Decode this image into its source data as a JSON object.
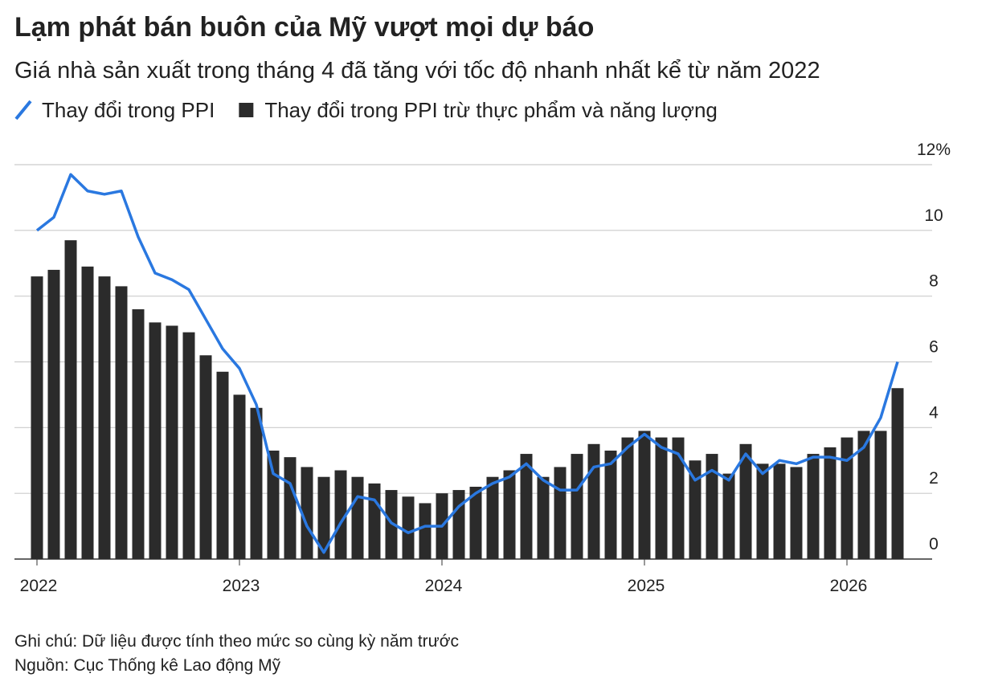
{
  "chart_data": {
    "type": "bar_line",
    "title": "Lạm phát bán buôn của Mỹ vượt mọi dự báo",
    "subtitle": "Giá nhà sản xuất trong tháng 4 đã tăng với tốc độ nhanh nhất kể từ năm 2022",
    "categories": [
      "2022",
      null,
      null,
      null,
      null,
      null,
      null,
      null,
      null,
      null,
      null,
      null,
      "2023",
      null,
      null,
      null,
      null,
      null,
      null,
      null,
      null,
      null,
      null,
      null,
      "2024",
      null,
      null,
      null,
      null,
      null,
      null,
      null,
      null,
      null,
      null,
      null,
      "2025",
      null,
      null,
      null,
      null,
      null,
      null,
      null,
      null,
      null,
      null,
      null,
      "2026",
      null,
      null,
      null
    ],
    "series": [
      {
        "name": "Thay đổi trong PPI",
        "color": "#2a78e0",
        "kind": "line",
        "values": [
          10.0,
          10.4,
          11.7,
          11.2,
          11.1,
          11.2,
          9.8,
          8.7,
          8.5,
          8.2,
          7.3,
          6.4,
          5.8,
          4.7,
          2.6,
          2.3,
          1.0,
          0.2,
          1.1,
          1.9,
          1.8,
          1.1,
          0.8,
          1.0,
          1.0,
          1.6,
          2.0,
          2.3,
          2.5,
          2.9,
          2.4,
          2.1,
          2.1,
          2.8,
          2.9,
          3.4,
          3.8,
          3.4,
          3.2,
          2.4,
          2.7,
          2.4,
          3.2,
          2.6,
          3.0,
          2.9,
          3.1,
          3.1,
          3.0,
          3.4,
          4.3,
          6.0
        ]
      },
      {
        "name": "Thay đổi trong PPI trừ thực phẩm và năng lượng",
        "color": "#2b2b2b",
        "kind": "bar",
        "values": [
          8.6,
          8.8,
          9.7,
          8.9,
          8.6,
          8.3,
          7.6,
          7.2,
          7.1,
          6.9,
          6.2,
          5.7,
          5.0,
          4.6,
          3.3,
          3.1,
          2.8,
          2.5,
          2.7,
          2.5,
          2.3,
          2.1,
          1.9,
          1.7,
          2.0,
          2.1,
          2.2,
          2.5,
          2.7,
          3.2,
          2.5,
          2.8,
          3.2,
          3.5,
          3.3,
          3.7,
          3.9,
          3.7,
          3.7,
          3.0,
          3.2,
          2.6,
          3.5,
          2.9,
          2.9,
          2.8,
          3.2,
          3.4,
          3.7,
          3.9,
          3.9,
          5.2
        ]
      }
    ],
    "ylim": [
      0,
      12
    ],
    "yticks": [
      0,
      2,
      4,
      6,
      8,
      10,
      {
        "value": 12,
        "label": "12%"
      }
    ],
    "grid": true,
    "notes": [
      "Ghi chú: Dữ liệu được tính theo mức so cùng kỳ năm trước",
      "Nguồn: Cục Thống kê Lao động Mỹ"
    ]
  }
}
